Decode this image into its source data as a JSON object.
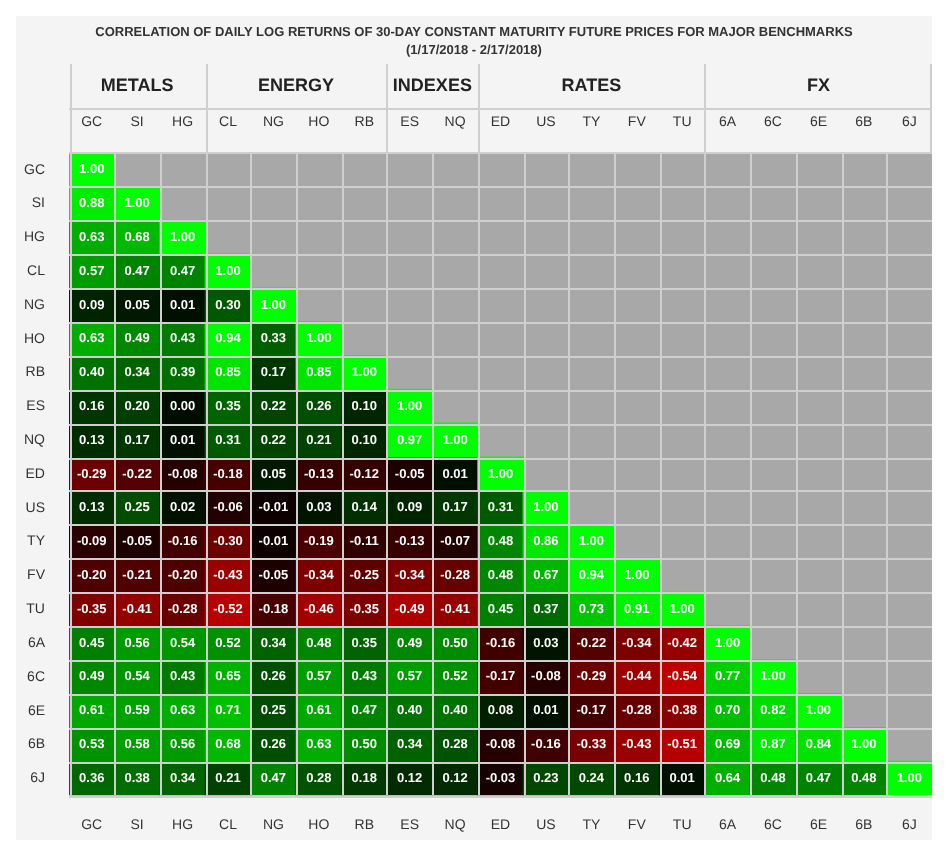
{
  "chart_data": {
    "type": "heatmap",
    "title": "CORRELATION OF DAILY LOG RETURNS OF 30-DAY CONSTANT MATURITY FUTURE PRICES FOR MAJOR BENCHMARKS",
    "subtitle": "(1/17/2018 - 2/17/2018)",
    "annotations": [
      "METALS",
      "ENERGY",
      "INDEXES",
      "RATES",
      "FX"
    ],
    "categories": [
      "GC",
      "SI",
      "HG",
      "CL",
      "NG",
      "HO",
      "RB",
      "ES",
      "NQ",
      "ED",
      "US",
      "TY",
      "FV",
      "TU",
      "6A",
      "6C",
      "6E",
      "6B",
      "6J"
    ],
    "y_categories": [
      "GC",
      "SI",
      "HG",
      "CL",
      "NG",
      "HO",
      "RB",
      "ES",
      "NQ",
      "ED",
      "US",
      "TY",
      "FV",
      "TU",
      "6A",
      "6C",
      "6E",
      "6B",
      "6J"
    ],
    "cells": [
      [
        1.0,
        null,
        null,
        null,
        null,
        null,
        null,
        null,
        null,
        null,
        null,
        null,
        null,
        null,
        null,
        null,
        null,
        null,
        null
      ],
      [
        0.88,
        1.0,
        null,
        null,
        null,
        null,
        null,
        null,
        null,
        null,
        null,
        null,
        null,
        null,
        null,
        null,
        null,
        null,
        null
      ],
      [
        0.63,
        0.68,
        1.0,
        null,
        null,
        null,
        null,
        null,
        null,
        null,
        null,
        null,
        null,
        null,
        null,
        null,
        null,
        null,
        null
      ],
      [
        0.57,
        0.47,
        0.47,
        1.0,
        null,
        null,
        null,
        null,
        null,
        null,
        null,
        null,
        null,
        null,
        null,
        null,
        null,
        null,
        null
      ],
      [
        0.09,
        0.05,
        0.01,
        0.3,
        1.0,
        null,
        null,
        null,
        null,
        null,
        null,
        null,
        null,
        null,
        null,
        null,
        null,
        null,
        null
      ],
      [
        0.63,
        0.49,
        0.43,
        0.94,
        0.33,
        1.0,
        null,
        null,
        null,
        null,
        null,
        null,
        null,
        null,
        null,
        null,
        null,
        null,
        null
      ],
      [
        0.4,
        0.34,
        0.39,
        0.85,
        0.17,
        0.85,
        1.0,
        null,
        null,
        null,
        null,
        null,
        null,
        null,
        null,
        null,
        null,
        null,
        null
      ],
      [
        0.16,
        0.2,
        0.0,
        0.35,
        0.22,
        0.26,
        0.1,
        1.0,
        null,
        null,
        null,
        null,
        null,
        null,
        null,
        null,
        null,
        null,
        null
      ],
      [
        0.13,
        0.17,
        0.01,
        0.31,
        0.22,
        0.21,
        0.1,
        0.97,
        1.0,
        null,
        null,
        null,
        null,
        null,
        null,
        null,
        null,
        null,
        null
      ],
      [
        -0.29,
        -0.22,
        -0.08,
        -0.18,
        0.05,
        -0.13,
        -0.12,
        -0.05,
        0.01,
        1.0,
        null,
        null,
        null,
        null,
        null,
        null,
        null,
        null,
        null
      ],
      [
        0.13,
        0.25,
        0.02,
        -0.06,
        -0.01,
        0.03,
        0.14,
        0.09,
        0.17,
        0.31,
        1.0,
        null,
        null,
        null,
        null,
        null,
        null,
        null,
        null
      ],
      [
        -0.09,
        -0.05,
        -0.16,
        -0.3,
        -0.01,
        -0.19,
        -0.11,
        -0.13,
        -0.07,
        0.48,
        0.86,
        1.0,
        null,
        null,
        null,
        null,
        null,
        null,
        null
      ],
      [
        -0.2,
        -0.21,
        -0.2,
        -0.43,
        -0.05,
        -0.34,
        -0.25,
        -0.34,
        -0.28,
        0.48,
        0.67,
        0.94,
        1.0,
        null,
        null,
        null,
        null,
        null,
        null
      ],
      [
        -0.35,
        -0.41,
        -0.28,
        -0.52,
        -0.18,
        -0.46,
        -0.35,
        -0.49,
        -0.41,
        0.45,
        0.37,
        0.73,
        0.91,
        1.0,
        null,
        null,
        null,
        null,
        null
      ],
      [
        0.45,
        0.56,
        0.54,
        0.52,
        0.34,
        0.48,
        0.35,
        0.49,
        0.5,
        -0.16,
        0.03,
        -0.22,
        -0.34,
        -0.42,
        1.0,
        null,
        null,
        null,
        null
      ],
      [
        0.49,
        0.54,
        0.43,
        0.65,
        0.26,
        0.57,
        0.43,
        0.57,
        0.52,
        -0.17,
        -0.08,
        -0.29,
        -0.44,
        -0.54,
        0.77,
        1.0,
        null,
        null,
        null
      ],
      [
        0.61,
        0.59,
        0.63,
        0.71,
        0.25,
        0.61,
        0.47,
        0.4,
        0.4,
        0.08,
        0.01,
        -0.17,
        -0.28,
        -0.38,
        0.7,
        0.82,
        1.0,
        null,
        null
      ],
      [
        0.53,
        0.58,
        0.56,
        0.68,
        0.26,
        0.63,
        0.5,
        0.34,
        0.28,
        -0.08,
        -0.16,
        -0.33,
        -0.43,
        -0.51,
        0.69,
        0.87,
        0.84,
        1.0,
        null
      ],
      [
        0.36,
        0.38,
        0.34,
        0.21,
        0.47,
        0.28,
        0.18,
        0.12,
        0.12,
        -0.03,
        0.23,
        0.24,
        0.16,
        0.01,
        0.64,
        0.48,
        0.47,
        0.48,
        1.0
      ]
    ],
    "cell_labels": [
      [
        "1.00",
        null,
        null,
        null,
        null,
        null,
        null,
        null,
        null,
        null,
        null,
        null,
        null,
        null,
        null,
        null,
        null,
        null,
        null
      ],
      [
        "0.88",
        "1.00",
        null,
        null,
        null,
        null,
        null,
        null,
        null,
        null,
        null,
        null,
        null,
        null,
        null,
        null,
        null,
        null,
        null
      ],
      [
        "0.63",
        "0.68",
        "1.00",
        null,
        null,
        null,
        null,
        null,
        null,
        null,
        null,
        null,
        null,
        null,
        null,
        null,
        null,
        null,
        null
      ],
      [
        "0.57",
        "0.47",
        "0.47",
        "1.00",
        null,
        null,
        null,
        null,
        null,
        null,
        null,
        null,
        null,
        null,
        null,
        null,
        null,
        null,
        null
      ],
      [
        "0.09",
        "0.05",
        "0.01",
        "0.30",
        "1.00",
        null,
        null,
        null,
        null,
        null,
        null,
        null,
        null,
        null,
        null,
        null,
        null,
        null,
        null
      ],
      [
        "0.63",
        "0.49",
        "0.43",
        "0.94",
        "0.33",
        "1.00",
        null,
        null,
        null,
        null,
        null,
        null,
        null,
        null,
        null,
        null,
        null,
        null,
        null
      ],
      [
        "0.40",
        "0.34",
        "0.39",
        "0.85",
        "0.17",
        "0.85",
        "1.00",
        null,
        null,
        null,
        null,
        null,
        null,
        null,
        null,
        null,
        null,
        null,
        null
      ],
      [
        "0.16",
        "0.20",
        "0.00",
        "0.35",
        "0.22",
        "0.26",
        "0.10",
        "1.00",
        null,
        null,
        null,
        null,
        null,
        null,
        null,
        null,
        null,
        null,
        null
      ],
      [
        "0.13",
        "0.17",
        "0.01",
        "0.31",
        "0.22",
        "0.21",
        "0.10",
        "0.97",
        "1.00",
        null,
        null,
        null,
        null,
        null,
        null,
        null,
        null,
        null,
        null
      ],
      [
        "-0.29",
        "-0.22",
        "-0.08",
        "-0.18",
        "0.05",
        "-0.13",
        "-0.12",
        "-0.05",
        "0.01",
        "1.00",
        null,
        null,
        null,
        null,
        null,
        null,
        null,
        null,
        null
      ],
      [
        "0.13",
        "0.25",
        "0.02",
        "-0.06",
        "-0.01",
        "0.03",
        "0.14",
        "0.09",
        "0.17",
        "0.31",
        "1.00",
        null,
        null,
        null,
        null,
        null,
        null,
        null,
        null
      ],
      [
        "-0.09",
        "-0.05",
        "-0.16",
        "-0.30",
        "-0.01",
        "-0.19",
        "-0.11",
        "-0.13",
        "-0.07",
        "0.48",
        "0.86",
        "1.00",
        null,
        null,
        null,
        null,
        null,
        null,
        null
      ],
      [
        "-0.20",
        "-0.21",
        "-0.20",
        "-0.43",
        "-0.05",
        "-0.34",
        "-0.25",
        "-0.34",
        "-0.28",
        "0.48",
        "0.67",
        "0.94",
        "1.00",
        null,
        null,
        null,
        null,
        null,
        null
      ],
      [
        "-0.35",
        "-0.41",
        "-0.28",
        "-0.52",
        "-0.18",
        "-0.46",
        "-0.35",
        "-0.49",
        "-0.41",
        "0.45",
        "0.37",
        "0.73",
        "0.91",
        "1.00",
        null,
        null,
        null,
        null,
        null
      ],
      [
        "0.45",
        "0.56",
        "0.54",
        "0.52",
        "0.34",
        "0.48",
        "0.35",
        "0.49",
        "0.50",
        "-0.16",
        "0.03",
        "-0.22",
        "-0.34",
        "-0.42",
        "1.00",
        null,
        null,
        null,
        null
      ],
      [
        "0.49",
        "0.54",
        "0.43",
        "0.65",
        "0.26",
        "0.57",
        "0.43",
        "0.57",
        "0.52",
        "-0.17",
        "-0.08",
        "-0.29",
        "-0.44",
        "-0.54",
        "0.77",
        "1.00",
        null,
        null,
        null
      ],
      [
        "0.61",
        "0.59",
        "0.63",
        "0.71",
        "0.25",
        "0.61",
        "0.47",
        "0.40",
        "0.40",
        "0.08",
        "0.01",
        "-0.17",
        "-0.28",
        "-0.38",
        "0.70",
        "0.82",
        "1.00",
        null,
        null
      ],
      [
        "0.53",
        "0.58",
        "0.56",
        "0.68",
        "0.26",
        "0.63",
        "0.50",
        "0.34",
        "0.28",
        "-0.08",
        "-0.16",
        "-0.33",
        "-0.43",
        "-0.51",
        "0.69",
        "0.87",
        "0.84",
        "1.00",
        null
      ],
      [
        "0.36",
        "0.38",
        "0.34",
        "0.21",
        "0.47",
        "0.28",
        "0.18",
        "0.12",
        "0.12",
        "-0.03",
        "0.23",
        "0.24",
        "0.16",
        "0.01",
        "0.64",
        "0.48",
        "0.47",
        "0.48",
        "1.00"
      ]
    ]
  }
}
